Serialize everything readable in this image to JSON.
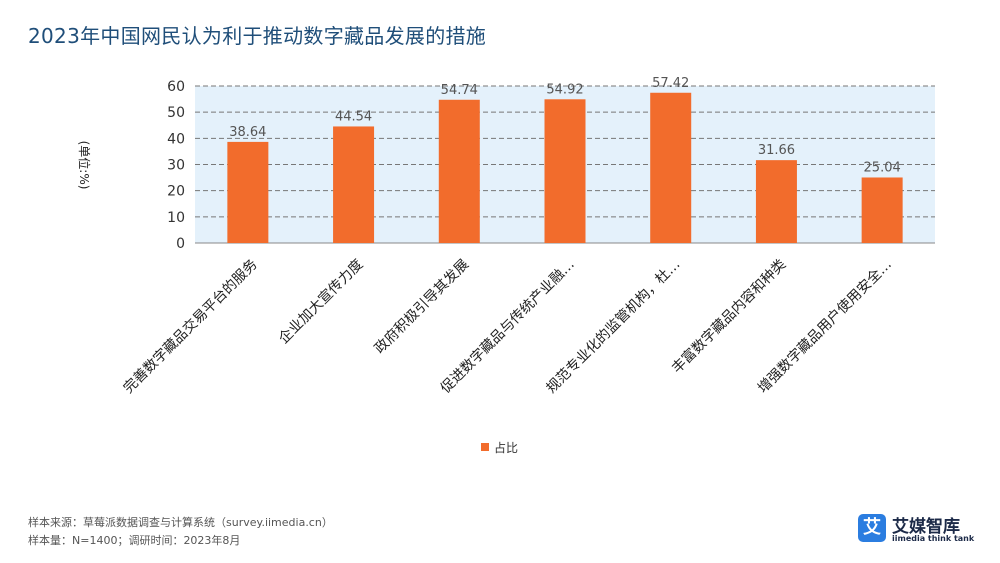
{
  "title": "2023年中国网民认为利于推动数字藏品发展的措施",
  "chart_data": {
    "type": "bar",
    "categories": [
      "完善数字藏品交易平台的服务",
      "企业加大宣传力度",
      "政府积极引导其发展",
      "促进数字藏品与传统产业融…",
      "规范专业化的监管机构，杜…",
      "丰富数字藏品内容和种类",
      "增强数字藏品用户使用安全…"
    ],
    "series": [
      {
        "name": "占比",
        "values": [
          38.64,
          44.54,
          54.74,
          54.92,
          57.42,
          31.66,
          25.04
        ]
      }
    ],
    "value_labels": [
      "38.64",
      "44.54",
      "54.74",
      "54.92",
      "57.42",
      "31.66",
      "25.04"
    ],
    "ylabel": "(单位:%)",
    "ylim": [
      0,
      60
    ],
    "yticks": [
      0,
      10,
      20,
      30,
      40,
      50,
      60
    ],
    "grid": true,
    "legend_position": "bottom",
    "bar_color": "#f26c2c",
    "plot_background": "#e4f1fb"
  },
  "footer": {
    "source": "样本来源：草莓派数据调查与计算系统（survey.iimedia.cn）",
    "sample": "样本量：N=1400；调研时间：2023年8月"
  },
  "logo": {
    "icon_char": "艾",
    "name": "艾媒智库",
    "sub": "iimedia think tank"
  }
}
